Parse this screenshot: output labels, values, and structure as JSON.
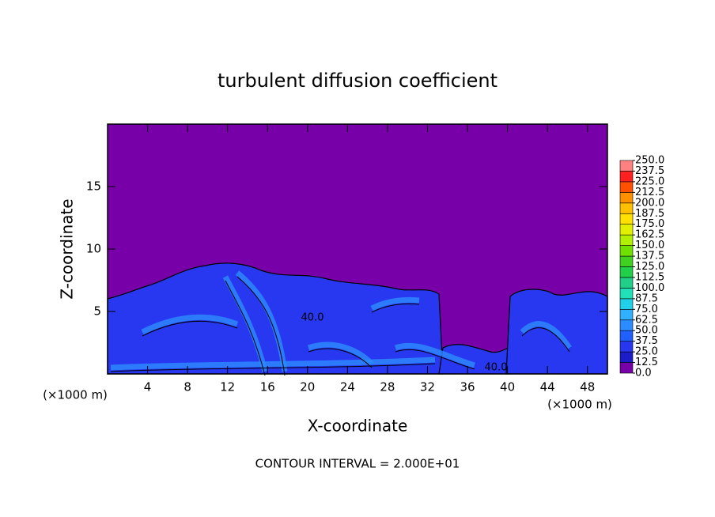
{
  "chart_data": {
    "type": "contour",
    "title": "turbulent diffusion coefficient",
    "x_label": "X-coordinate",
    "y_label": "Z-coordinate",
    "x_unit": "(×1000 m)",
    "y_unit": "(×1000 m)",
    "footer": "CONTOUR INTERVAL = 2.000E+01",
    "xlim": [
      0,
      50
    ],
    "ylim": [
      0,
      20
    ],
    "xticks": [
      4,
      8,
      12,
      16,
      20,
      24,
      28,
      32,
      36,
      40,
      44,
      48
    ],
    "yticks": [
      5,
      10,
      15
    ],
    "contour_labels": [
      "40.0",
      "40.0"
    ],
    "colorbar": {
      "levels": [
        {
          "value": 0,
          "label": "0.0"
        },
        {
          "value": 12.5,
          "label": "12.5"
        },
        {
          "value": 25,
          "label": "25.0"
        },
        {
          "value": 37.5,
          "label": "37.5"
        },
        {
          "value": 50,
          "label": "50.0"
        },
        {
          "value": 62.5,
          "label": "62.5"
        },
        {
          "value": 75,
          "label": "75.0"
        },
        {
          "value": 87.5,
          "label": "87.5"
        },
        {
          "value": 100,
          "label": "100.0"
        },
        {
          "value": 112.5,
          "label": "112.5"
        },
        {
          "value": 125,
          "label": "125.0"
        },
        {
          "value": 137.5,
          "label": "137.5"
        },
        {
          "value": 150,
          "label": "150.0"
        },
        {
          "value": 162.5,
          "label": "162.5"
        },
        {
          "value": 175,
          "label": "175.0"
        },
        {
          "value": 187.5,
          "label": "187.5"
        },
        {
          "value": 200,
          "label": "200.0"
        },
        {
          "value": 212.5,
          "label": "212.5"
        },
        {
          "value": 225,
          "label": "225.0"
        },
        {
          "value": 237.5,
          "label": "237.5"
        },
        {
          "value": 250,
          "label": "250.0"
        }
      ],
      "colors": [
        "#7800a8",
        "#1c1cc8",
        "#2838f0",
        "#2060ff",
        "#2c8cff",
        "#30b0ff",
        "#20d0e8",
        "#20e0b8",
        "#20d088",
        "#20d048",
        "#40d020",
        "#70e000",
        "#b0f000",
        "#e0f000",
        "#ffe000",
        "#ffc000",
        "#ff9000",
        "#ff5000",
        "#ff2020",
        "#ff8080"
      ]
    }
  }
}
